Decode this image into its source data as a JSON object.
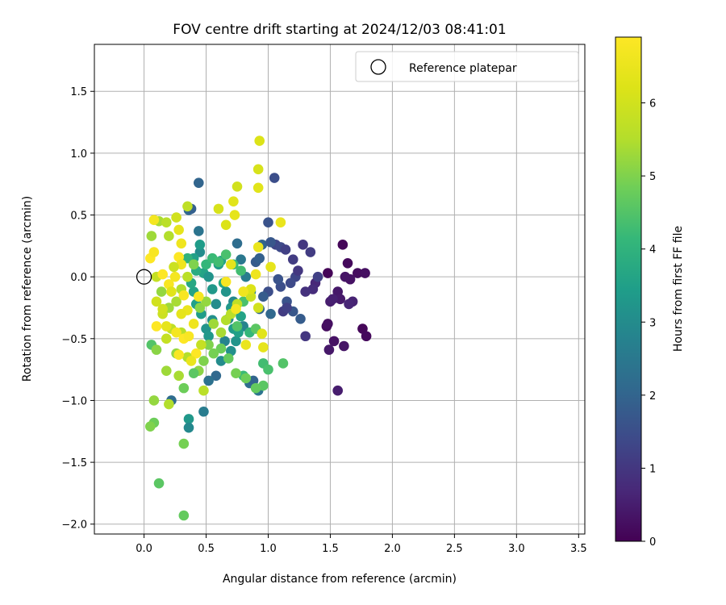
{
  "chart_data": {
    "type": "scatter",
    "title": "FOV centre drift starting at 2024/12/03 08:41:01",
    "xlabel": "Angular distance from reference (arcmin)",
    "ylabel": "Rotation from reference (arcmin)",
    "xlim": [
      -0.4,
      3.55
    ],
    "ylim": [
      -2.08,
      1.88
    ],
    "xticks": [
      0.0,
      0.5,
      1.0,
      1.5,
      2.0,
      2.5,
      3.0,
      3.5
    ],
    "yticks": [
      -2.0,
      -1.5,
      -1.0,
      -0.5,
      0.0,
      0.5,
      1.0,
      1.5
    ],
    "grid": true,
    "legend": {
      "placement": "top-right",
      "entries": [
        "Reference platepar"
      ]
    },
    "colorbar": {
      "label": "Hours from first FF file",
      "range": [
        0,
        6.9
      ],
      "ticks": [
        0,
        1,
        2,
        3,
        4,
        5,
        6
      ],
      "colormap": "viridis"
    },
    "reference_point": {
      "name": "Reference platepar",
      "x": 0.0,
      "y": 0.0
    },
    "points": [
      [
        1.48,
        0.03,
        0.05
      ],
      [
        1.6,
        0.26,
        0.1
      ],
      [
        1.64,
        0.11,
        0.15
      ],
      [
        1.72,
        0.03,
        0.2
      ],
      [
        1.78,
        0.03,
        0.25
      ],
      [
        1.66,
        -0.02,
        0.3
      ],
      [
        1.62,
        0.0,
        0.35
      ],
      [
        1.56,
        -0.12,
        0.4
      ],
      [
        1.58,
        -0.18,
        0.45
      ],
      [
        1.5,
        -0.2,
        0.5
      ],
      [
        1.52,
        -0.18,
        0.55
      ],
      [
        1.68,
        -0.2,
        0.6
      ],
      [
        1.65,
        -0.22,
        0.65
      ],
      [
        1.76,
        -0.42,
        0.1
      ],
      [
        1.79,
        -0.48,
        0.15
      ],
      [
        1.47,
        -0.4,
        0.2
      ],
      [
        1.48,
        -0.38,
        0.25
      ],
      [
        1.53,
        -0.52,
        0.3
      ],
      [
        1.61,
        -0.56,
        0.35
      ],
      [
        1.49,
        -0.59,
        0.4
      ],
      [
        1.56,
        -0.92,
        0.5
      ],
      [
        1.38,
        -0.05,
        0.7
      ],
      [
        1.36,
        -0.1,
        0.8
      ],
      [
        1.3,
        -0.12,
        0.9
      ],
      [
        1.28,
        0.26,
        1.0
      ],
      [
        1.34,
        0.2,
        1.1
      ],
      [
        1.4,
        0.0,
        1.2
      ],
      [
        1.22,
        0.0,
        1.3
      ],
      [
        1.18,
        -0.05,
        1.4
      ],
      [
        1.1,
        -0.08,
        1.5
      ],
      [
        1.15,
        -0.2,
        1.6
      ],
      [
        1.2,
        -0.28,
        1.7
      ],
      [
        1.26,
        -0.34,
        1.8
      ],
      [
        1.3,
        -0.48,
        1.0
      ],
      [
        1.12,
        -0.28,
        1.1
      ],
      [
        1.15,
        -0.25,
        1.2
      ],
      [
        1.05,
        0.8,
        1.5
      ],
      [
        1.0,
        0.44,
        1.6
      ],
      [
        1.06,
        0.26,
        1.3
      ],
      [
        1.1,
        0.24,
        1.4
      ],
      [
        1.14,
        0.22,
        1.2
      ],
      [
        1.2,
        0.14,
        1.1
      ],
      [
        1.24,
        0.05,
        1.0
      ],
      [
        0.9,
        0.12,
        1.8
      ],
      [
        0.93,
        0.15,
        1.9
      ],
      [
        0.95,
        0.26,
        2.0
      ],
      [
        1.02,
        0.28,
        1.7
      ],
      [
        1.08,
        -0.02,
        1.6
      ],
      [
        1.0,
        -0.12,
        1.5
      ],
      [
        0.96,
        -0.16,
        1.8
      ],
      [
        0.93,
        -0.26,
        2.0
      ],
      [
        1.02,
        -0.3,
        2.1
      ],
      [
        0.85,
        -0.86,
        2.2
      ],
      [
        0.88,
        -0.84,
        2.0
      ],
      [
        0.92,
        -0.92,
        2.4
      ],
      [
        0.75,
        0.27,
        2.2
      ],
      [
        0.78,
        0.14,
        2.5
      ],
      [
        0.82,
        0.0,
        2.6
      ],
      [
        0.86,
        -0.12,
        2.7
      ],
      [
        0.8,
        -0.4,
        2.8
      ],
      [
        0.72,
        -0.2,
        2.9
      ],
      [
        0.68,
        -0.34,
        3.0
      ],
      [
        0.65,
        -0.52,
        2.8
      ],
      [
        0.7,
        -0.6,
        3.1
      ],
      [
        0.74,
        -0.52,
        3.2
      ],
      [
        0.62,
        -0.68,
        3.0
      ],
      [
        0.58,
        -0.8,
        2.1
      ],
      [
        0.52,
        -0.84,
        2.3
      ],
      [
        0.48,
        -1.09,
        2.6
      ],
      [
        0.36,
        -1.15,
        3.3
      ],
      [
        0.36,
        -1.22,
        2.9
      ],
      [
        0.22,
        -1.0,
        2.2
      ],
      [
        0.44,
        0.76,
        2.0
      ],
      [
        0.36,
        0.54,
        2.1
      ],
      [
        0.38,
        0.55,
        1.9
      ],
      [
        0.44,
        0.37,
        2.4
      ],
      [
        0.45,
        0.2,
        3.0
      ],
      [
        0.45,
        0.26,
        3.4
      ],
      [
        0.4,
        0.15,
        3.5
      ],
      [
        0.48,
        0.03,
        3.6
      ],
      [
        0.52,
        0.0,
        3.2
      ],
      [
        0.55,
        -0.1,
        3.3
      ],
      [
        0.6,
        0.1,
        3.4
      ],
      [
        0.62,
        0.13,
        3.6
      ],
      [
        0.64,
        -0.05,
        3.7
      ],
      [
        0.66,
        -0.12,
        3.2
      ],
      [
        0.7,
        -0.25,
        3.3
      ],
      [
        0.72,
        -0.42,
        3.4
      ],
      [
        0.76,
        -0.45,
        3.5
      ],
      [
        0.78,
        -0.32,
        3.6
      ],
      [
        0.58,
        -0.22,
        3.0
      ],
      [
        0.55,
        -0.35,
        3.1
      ],
      [
        0.5,
        -0.42,
        3.2
      ],
      [
        0.52,
        -0.48,
        3.3
      ],
      [
        0.46,
        -0.3,
        3.4
      ],
      [
        0.42,
        -0.22,
        3.5
      ],
      [
        0.4,
        -0.12,
        3.6
      ],
      [
        0.38,
        -0.05,
        3.7
      ],
      [
        0.42,
        0.05,
        3.8
      ],
      [
        0.35,
        0.15,
        4.0
      ],
      [
        0.5,
        0.1,
        4.1
      ],
      [
        0.55,
        0.15,
        4.2
      ],
      [
        0.6,
        0.12,
        4.3
      ],
      [
        0.66,
        0.18,
        4.4
      ],
      [
        0.72,
        0.1,
        4.2
      ],
      [
        0.78,
        0.05,
        4.3
      ],
      [
        0.8,
        -0.2,
        4.4
      ],
      [
        0.75,
        -0.4,
        4.5
      ],
      [
        0.85,
        -0.45,
        4.1
      ],
      [
        0.9,
        -0.42,
        4.6
      ],
      [
        0.8,
        -0.8,
        4.2
      ],
      [
        0.96,
        -0.7,
        4.3
      ],
      [
        1.0,
        -0.75,
        4.4
      ],
      [
        1.12,
        -0.7,
        4.5
      ],
      [
        0.96,
        -0.88,
        4.6
      ],
      [
        0.9,
        -0.9,
        4.7
      ],
      [
        0.82,
        -0.82,
        4.8
      ],
      [
        0.74,
        -0.78,
        4.9
      ],
      [
        0.68,
        -0.66,
        4.7
      ],
      [
        0.62,
        -0.58,
        4.8
      ],
      [
        0.56,
        -0.62,
        4.9
      ],
      [
        0.52,
        -0.55,
        5.0
      ],
      [
        0.48,
        -0.68,
        5.0
      ],
      [
        0.44,
        -0.76,
        5.1
      ],
      [
        0.4,
        -0.78,
        4.6
      ],
      [
        0.32,
        -0.9,
        4.8
      ],
      [
        0.32,
        -1.35,
        4.9
      ],
      [
        0.32,
        -1.93,
        4.7
      ],
      [
        0.12,
        -1.67,
        4.6
      ],
      [
        0.08,
        -1.18,
        4.8
      ],
      [
        0.05,
        -1.21,
        5.0
      ],
      [
        0.08,
        -1.0,
        5.2
      ],
      [
        0.06,
        -0.55,
        4.5
      ],
      [
        0.1,
        -0.59,
        5.1
      ],
      [
        0.18,
        -0.76,
        5.3
      ],
      [
        0.2,
        -1.03,
        5.5
      ],
      [
        0.26,
        -0.62,
        5.2
      ],
      [
        0.28,
        -0.8,
        5.4
      ],
      [
        0.35,
        -0.65,
        5.5
      ],
      [
        0.3,
        -0.45,
        5.6
      ],
      [
        0.22,
        -0.42,
        5.7
      ],
      [
        0.18,
        -0.5,
        5.8
      ],
      [
        0.15,
        -0.3,
        5.9
      ],
      [
        0.1,
        -0.2,
        6.0
      ],
      [
        0.14,
        -0.12,
        5.2
      ],
      [
        0.2,
        -0.25,
        5.3
      ],
      [
        0.26,
        -0.2,
        5.4
      ],
      [
        0.3,
        -0.1,
        5.5
      ],
      [
        0.35,
        0.0,
        5.6
      ],
      [
        0.4,
        0.1,
        5.0
      ],
      [
        0.45,
        -0.25,
        5.1
      ],
      [
        0.5,
        -0.2,
        5.2
      ],
      [
        0.56,
        -0.38,
        5.3
      ],
      [
        0.62,
        -0.45,
        5.4
      ],
      [
        0.66,
        -0.35,
        5.5
      ],
      [
        0.7,
        -0.3,
        5.6
      ],
      [
        0.75,
        -0.22,
        5.7
      ],
      [
        0.8,
        -0.12,
        5.8
      ],
      [
        0.86,
        -0.16,
        5.9
      ],
      [
        0.92,
        -0.25,
        6.0
      ],
      [
        0.06,
        0.33,
        5.3
      ],
      [
        0.12,
        0.45,
        5.4
      ],
      [
        0.2,
        0.33,
        5.5
      ],
      [
        0.18,
        0.44,
        5.6
      ],
      [
        0.35,
        0.57,
        5.7
      ],
      [
        0.1,
        0.0,
        5.8
      ],
      [
        0.05,
        0.15,
        6.9
      ],
      [
        0.08,
        0.2,
        6.8
      ],
      [
        0.08,
        0.46,
        6.7
      ],
      [
        0.26,
        0.48,
        6.0
      ],
      [
        0.28,
        0.38,
        6.4
      ],
      [
        0.6,
        0.55,
        6.1
      ],
      [
        0.66,
        0.42,
        6.2
      ],
      [
        0.75,
        0.73,
        6.0
      ],
      [
        0.72,
        0.61,
        6.3
      ],
      [
        0.73,
        0.5,
        6.4
      ],
      [
        0.93,
        1.1,
        6.2
      ],
      [
        0.92,
        0.87,
        6.1
      ],
      [
        0.92,
        0.72,
        6.3
      ],
      [
        1.1,
        0.44,
        6.5
      ],
      [
        1.02,
        0.08,
        6.4
      ],
      [
        0.92,
        0.24,
        6.5
      ],
      [
        0.9,
        0.02,
        6.6
      ],
      [
        0.86,
        -0.1,
        6.2
      ],
      [
        0.95,
        -0.46,
        6.3
      ],
      [
        0.96,
        -0.57,
        6.4
      ],
      [
        0.82,
        -0.55,
        6.5
      ],
      [
        0.8,
        -0.12,
        6.6
      ],
      [
        0.74,
        -0.26,
        6.7
      ],
      [
        0.66,
        -0.04,
        6.8
      ],
      [
        0.7,
        0.1,
        6.4
      ],
      [
        0.15,
        0.02,
        6.9
      ],
      [
        0.2,
        -0.06,
        6.8
      ],
      [
        0.25,
        0.0,
        6.7
      ],
      [
        0.28,
        0.16,
        6.9
      ],
      [
        0.3,
        0.1,
        6.6
      ],
      [
        0.32,
        -0.15,
        6.8
      ],
      [
        0.35,
        -0.27,
        6.5
      ],
      [
        0.3,
        -0.3,
        6.4
      ],
      [
        0.26,
        -0.45,
        6.7
      ],
      [
        0.32,
        -0.5,
        6.9
      ],
      [
        0.36,
        -0.48,
        6.8
      ],
      [
        0.44,
        -0.16,
        6.7
      ],
      [
        0.4,
        -0.38,
        6.6
      ],
      [
        0.42,
        -0.62,
        6.9
      ],
      [
        0.38,
        -0.68,
        6.5
      ],
      [
        0.28,
        -0.63,
        6.8
      ],
      [
        0.1,
        -0.4,
        6.9
      ],
      [
        0.18,
        -0.4,
        6.4
      ],
      [
        0.22,
        -0.12,
        6.3
      ],
      [
        0.15,
        -0.26,
        6.0
      ],
      [
        0.24,
        0.08,
        5.9
      ],
      [
        0.46,
        -0.55,
        5.8
      ],
      [
        0.48,
        -0.92,
        5.6
      ],
      [
        0.3,
        0.27,
        6.6
      ]
    ]
  }
}
